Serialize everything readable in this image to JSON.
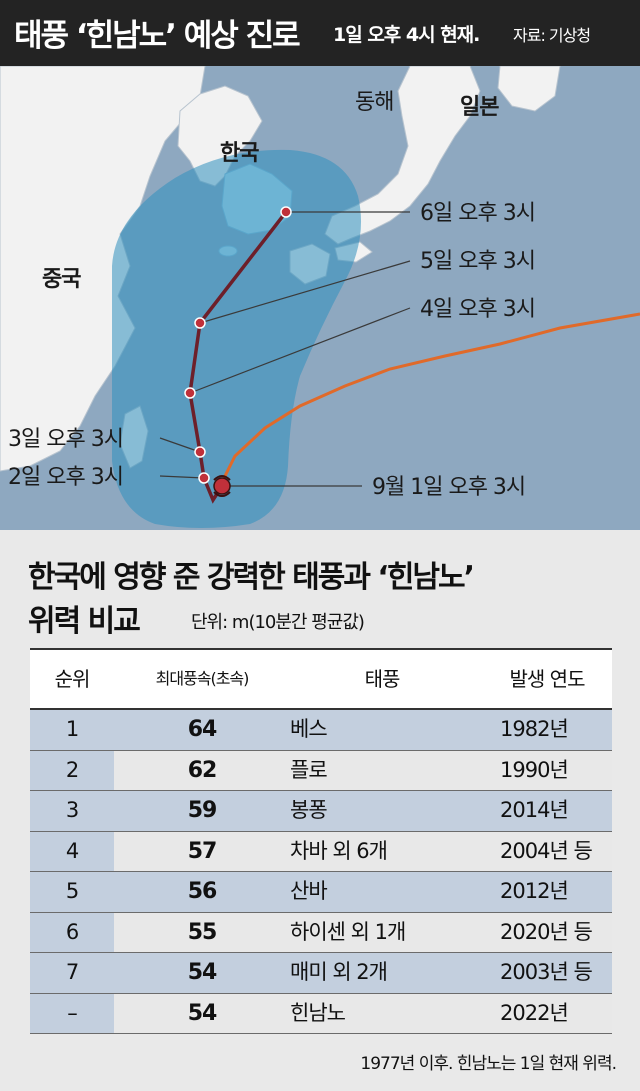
{
  "header": {
    "title": "태풍 ‘힌남노’ 예상 진로",
    "time": "1일 오후 4시 현재.",
    "source": "자료: 기상청"
  },
  "map": {
    "places": {
      "korea": "한국",
      "china": "중국",
      "east_sea": "동해",
      "japan": "일본"
    },
    "forecast_points": [
      {
        "label": "6일 오후 3시"
      },
      {
        "label": "5일 오후 3시"
      },
      {
        "label": "4일 오후 3시"
      },
      {
        "label": "3일 오후 3시"
      },
      {
        "label": "2일 오후 3시"
      },
      {
        "label": "9월 1일 오후 3시"
      }
    ],
    "colors": {
      "sea": "#8ea8c0",
      "land": "#f2f2f2",
      "forecast_cone": "#2f8fbd",
      "forecast_track": "#6d1f2a",
      "past_track": "#e06a2a"
    }
  },
  "table": {
    "title_line1": "한국에 영향 준 강력한 태풍과 ‘힌남노’",
    "title_line2": "위력 비교",
    "unit": "단위: m(10분간 평균값)",
    "headers": [
      "순위",
      "최대풍속(초속)",
      "태풍",
      "발생 연도"
    ],
    "rows": [
      {
        "rank": "1",
        "speed": "64",
        "name": "베스",
        "year": "1982년"
      },
      {
        "rank": "2",
        "speed": "62",
        "name": "플로",
        "year": "1990년"
      },
      {
        "rank": "3",
        "speed": "59",
        "name": "봉퐁",
        "year": "2014년"
      },
      {
        "rank": "4",
        "speed": "57",
        "name": "차바 외 6개",
        "year": "2004년 등"
      },
      {
        "rank": "5",
        "speed": "56",
        "name": "산바",
        "year": "2012년"
      },
      {
        "rank": "6",
        "speed": "55",
        "name": "하이센 외 1개",
        "year": "2020년 등"
      },
      {
        "rank": "7",
        "speed": "54",
        "name": "매미 외 2개",
        "year": "2003년 등"
      },
      {
        "rank": "–",
        "speed": "54",
        "name": "힌남노",
        "year": "2022년"
      }
    ],
    "colors": {
      "row_a": "#c3cfde",
      "row_b": "#e8e8e8"
    },
    "footnote": "1977년 이후. 힌남노는 1일 현재 위력."
  }
}
